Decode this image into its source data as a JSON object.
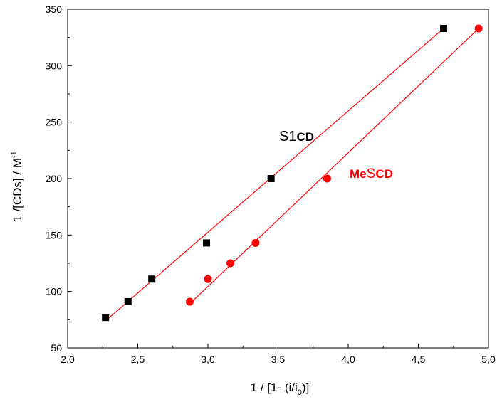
{
  "chart_data": {
    "type": "scatter",
    "xlabel": "1 / [1- (i/i",
    "xlabel_sub": "0",
    "xlabel_end": ")]",
    "ylabel": "1 /[CDs]  / M",
    "ylabel_sup": "-1",
    "xlim": [
      2.0,
      5.0
    ],
    "ylim": [
      50,
      350
    ],
    "xticks": [
      {
        "value": 2.0,
        "label": "2,0"
      },
      {
        "value": 2.5,
        "label": "2,5"
      },
      {
        "value": 3.0,
        "label": "3,0"
      },
      {
        "value": 3.5,
        "label": "3,5"
      },
      {
        "value": 4.0,
        "label": "4,0"
      },
      {
        "value": 4.5,
        "label": "4,5"
      },
      {
        "value": 5.0,
        "label": "5,0"
      }
    ],
    "yticks": [
      50,
      100,
      150,
      200,
      250,
      300,
      350
    ],
    "series": [
      {
        "name": "S1CD",
        "name_prefix": "S1",
        "name_suffix": "CD",
        "marker": "square",
        "color": "#000000",
        "fit_color": "#ff0000",
        "x": [
          2.27,
          2.43,
          2.6,
          2.99,
          3.45,
          4.68
        ],
        "y": [
          77,
          91,
          111,
          143,
          200,
          333
        ],
        "fit": {
          "x": [
            2.27,
            4.68
          ],
          "y": [
            74,
            333
          ]
        }
      },
      {
        "name": "MeSCD",
        "name_prefix": "Me",
        "name_mid": "S",
        "name_suffix": "CD",
        "marker": "circle",
        "color": "#ff0000",
        "fit_color": "#ff0000",
        "x": [
          2.87,
          3.0,
          3.16,
          3.34,
          3.85,
          4.93
        ],
        "y": [
          91,
          111,
          125,
          143,
          200,
          333
        ],
        "fit": {
          "x": [
            2.87,
            4.93
          ],
          "y": [
            89,
            333
          ]
        }
      }
    ],
    "grid": false
  }
}
